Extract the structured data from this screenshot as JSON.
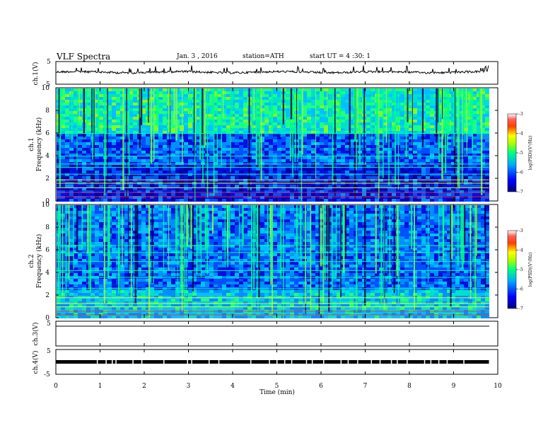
{
  "header": {
    "title": "VLF Spectra",
    "date": "Jan. 3 , 2016",
    "station": "station=ATH",
    "start": "start UT = 4 :30: 1"
  },
  "axis": {
    "xlabel": "Time (min)"
  },
  "channels": {
    "ch1_label": "ch.1(V)",
    "ch2_label": "ch.2",
    "ch3_label": "ch.3(V)",
    "ch4_label": "ch.4(V)",
    "freq_label": "Frequency (kHz)",
    "ch1_spec_label": "ch.1",
    "colorbar_label": "log(PSD)(V²/Hz)"
  },
  "colors": {
    "background": "#000066",
    "low": "#0000cc",
    "mid": "#00aaff",
    "high": "#00ff88",
    "hot": "#ffff00",
    "max": "#ff0000"
  },
  "chart_data": [
    {
      "type": "line",
      "name": "ch.1 waveform",
      "ylabel": "ch.1(V)",
      "ylim": [
        -5,
        5
      ],
      "yticks": [
        "5",
        "-5"
      ],
      "x_range_min": [
        0,
        9.8
      ]
    },
    {
      "type": "heatmap",
      "name": "ch.1 spectrogram",
      "xlabel": "Time (min)",
      "ylabel": "Frequency (kHz)",
      "xlim": [
        0,
        10
      ],
      "ylim": [
        0,
        10
      ],
      "yticks": [
        "0",
        "2",
        "4",
        "6",
        "8",
        "10"
      ],
      "colorbar": {
        "label": "log(PSD)(V²/Hz)",
        "range": [
          -7,
          -3
        ],
        "ticks": [
          "-3",
          "-4",
          "-5",
          "-6",
          "-7"
        ]
      }
    },
    {
      "type": "heatmap",
      "name": "ch.2 spectrogram",
      "ylabel": "Frequency (kHz)",
      "xlim": [
        0,
        10
      ],
      "ylim": [
        0,
        10
      ],
      "yticks": [
        "0",
        "2",
        "4",
        "6",
        "8",
        "10"
      ],
      "colorbar": {
        "label": "log(PSD)(V²/Hz)",
        "range": [
          -7,
          -3
        ],
        "ticks": [
          "-3",
          "-4",
          "-5",
          "-6",
          "-7"
        ]
      }
    },
    {
      "type": "line",
      "name": "ch.3 waveform",
      "ylabel": "ch.3(V)",
      "ylim": [
        -5,
        5
      ],
      "yticks": [
        "5"
      ]
    },
    {
      "type": "line",
      "name": "ch.4 waveform",
      "ylabel": "ch.4(V)",
      "ylim": [
        -5,
        5
      ],
      "yticks": [
        "5",
        "-5"
      ]
    }
  ],
  "xticks": [
    "0",
    "1",
    "2",
    "3",
    "4",
    "5",
    "6",
    "7",
    "8",
    "9",
    "10"
  ]
}
